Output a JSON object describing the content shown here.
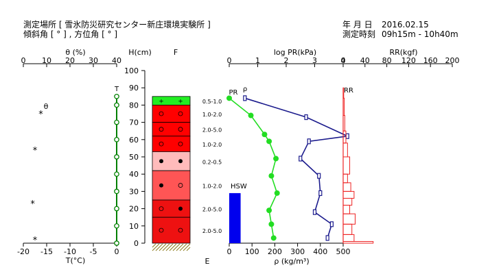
{
  "header": {
    "site_label": "測定場所 [ 雪氷防災研究センター新庄環境実験所 ]",
    "slope_label": "傾斜角 [ ° ] , 方位角 [ ° ]",
    "date_label": "年 月 日",
    "date_value": "2016.02.15",
    "time_label": "測定時刻",
    "time_value": "09h15m - 10h40m"
  },
  "colors": {
    "temperature": "#008000",
    "density": "#22dd22",
    "pr": "#1a1a8c",
    "rr": "#ee2222",
    "hsw": "#0000ee"
  },
  "chart_data": {
    "type": "snow-profile",
    "temperature": {
      "top_axis_label": "θ (%)",
      "top_ticks": [
        0,
        10,
        20,
        30,
        40
      ],
      "bottom_axis_label": "T(°C)",
      "bottom_ticks": [
        -20,
        -15,
        -10,
        -5,
        0
      ],
      "xlim": [
        -20,
        0
      ],
      "surface_marker": "T",
      "theta_marker": "θ",
      "temperature_points": [
        {
          "h": 85,
          "t": 0
        },
        {
          "h": 80,
          "t": 0
        },
        {
          "h": 70,
          "t": 0
        },
        {
          "h": 60,
          "t": 0
        },
        {
          "h": 50,
          "t": 0
        },
        {
          "h": 40,
          "t": 0
        },
        {
          "h": 30,
          "t": 0
        },
        {
          "h": 20,
          "t": 0
        },
        {
          "h": 10,
          "t": 0
        },
        {
          "h": 0,
          "t": 0
        }
      ],
      "theta_points": [
        {
          "h": 75,
          "theta": 7.5
        },
        {
          "h": 54,
          "theta": 5
        },
        {
          "h": 23,
          "theta": 4
        },
        {
          "h": 2,
          "theta": 5
        }
      ]
    },
    "height_axis": {
      "label": "H(cm)",
      "ticks": [
        0,
        10,
        20,
        30,
        40,
        50,
        60,
        70,
        80,
        90,
        100
      ],
      "ylim": [
        0,
        100
      ]
    },
    "layers": {
      "top_label": "F",
      "bottom_label": "E",
      "items": [
        {
          "bottom": 80,
          "top": 85,
          "color": "#22ee22",
          "symbols": [
            "+",
            "+"
          ],
          "size": "0.5-1.0"
        },
        {
          "bottom": 70,
          "top": 80,
          "color": "#ff0000",
          "symbols": [
            "○",
            "○"
          ],
          "size": "1.0-2.0"
        },
        {
          "bottom": 62,
          "top": 70,
          "color": "#ff0000",
          "symbols": [
            "○",
            "○"
          ],
          "size": "2.0-5.0"
        },
        {
          "bottom": 53,
          "top": 62,
          "color": "#ff0000",
          "symbols": [
            "○",
            "○"
          ],
          "size": "1.0-2.0"
        },
        {
          "bottom": 42,
          "top": 53,
          "color": "#ffbbbb",
          "symbols": [
            "●",
            "●"
          ],
          "size": "0.2-0.5"
        },
        {
          "bottom": 25,
          "top": 42,
          "color": "#ff5555",
          "symbols": [
            "●",
            "○"
          ],
          "size": "1.0-2.0"
        },
        {
          "bottom": 15,
          "top": 25,
          "color": "#ee1111",
          "symbols": [
            "○",
            "●"
          ],
          "size": "2.0-5.0"
        },
        {
          "bottom": 0,
          "top": 15,
          "color": "#ee1111",
          "symbols": [
            "○",
            "○"
          ],
          "size": "2.0-5.0"
        }
      ]
    },
    "density": {
      "axis_label": "ρ (kg/m³)",
      "ticks": [
        0,
        100,
        200,
        300,
        400,
        500
      ],
      "xlim": [
        0,
        500
      ],
      "marker_label": "ρ",
      "points": [
        {
          "h": 84,
          "rho": 0
        },
        {
          "h": 74,
          "rho": 95
        },
        {
          "h": 63,
          "rho": 155
        },
        {
          "h": 59,
          "rho": 175
        },
        {
          "h": 49,
          "rho": 205
        },
        {
          "h": 39,
          "rho": 185
        },
        {
          "h": 29,
          "rho": 210
        },
        {
          "h": 19,
          "rho": 175
        },
        {
          "h": 11,
          "rho": 185
        },
        {
          "h": 3,
          "rho": 195
        }
      ]
    },
    "hsw": {
      "label": "HSW",
      "height": 29,
      "x_from": 0,
      "x_to": 50
    },
    "pr": {
      "axis_label": "log PR(kPa)",
      "ticks": [
        0,
        1,
        2,
        3,
        4
      ],
      "xlim": [
        0,
        4
      ],
      "marker_label": "PR",
      "points": [
        {
          "h": 84,
          "v": 0.55
        },
        {
          "h": 73,
          "v": 2.7
        },
        {
          "h": 62,
          "v": 4.15
        },
        {
          "h": 59,
          "v": 2.8
        },
        {
          "h": 49,
          "v": 2.5
        },
        {
          "h": 39,
          "v": 3.15
        },
        {
          "h": 29,
          "v": 3.2
        },
        {
          "h": 18,
          "v": 3.0
        },
        {
          "h": 11,
          "v": 3.6
        },
        {
          "h": 3,
          "v": 3.45
        }
      ]
    },
    "rr": {
      "axis_label": "RR(kgf)",
      "ticks": [
        0,
        40,
        80,
        120,
        160,
        200
      ],
      "xlim": [
        0,
        200
      ],
      "marker_label": "RR",
      "steps": [
        {
          "bottom": 84,
          "top": 90,
          "v": 1
        },
        {
          "bottom": 74,
          "top": 84,
          "v": 2
        },
        {
          "bottom": 65,
          "top": 74,
          "v": 3
        },
        {
          "bottom": 58,
          "top": 65,
          "v": 5
        },
        {
          "bottom": 50,
          "top": 58,
          "v": 8
        },
        {
          "bottom": 40,
          "top": 50,
          "v": 12
        },
        {
          "bottom": 35,
          "top": 40,
          "v": 8
        },
        {
          "bottom": 30,
          "top": 35,
          "v": 14
        },
        {
          "bottom": 26,
          "top": 30,
          "v": 20
        },
        {
          "bottom": 22,
          "top": 26,
          "v": 16
        },
        {
          "bottom": 17,
          "top": 22,
          "v": 12
        },
        {
          "bottom": 11,
          "top": 17,
          "v": 22
        },
        {
          "bottom": 5,
          "top": 11,
          "v": 16
        },
        {
          "bottom": 1,
          "top": 5,
          "v": 20
        },
        {
          "bottom": 0,
          "top": 1,
          "v": 55
        }
      ]
    }
  }
}
